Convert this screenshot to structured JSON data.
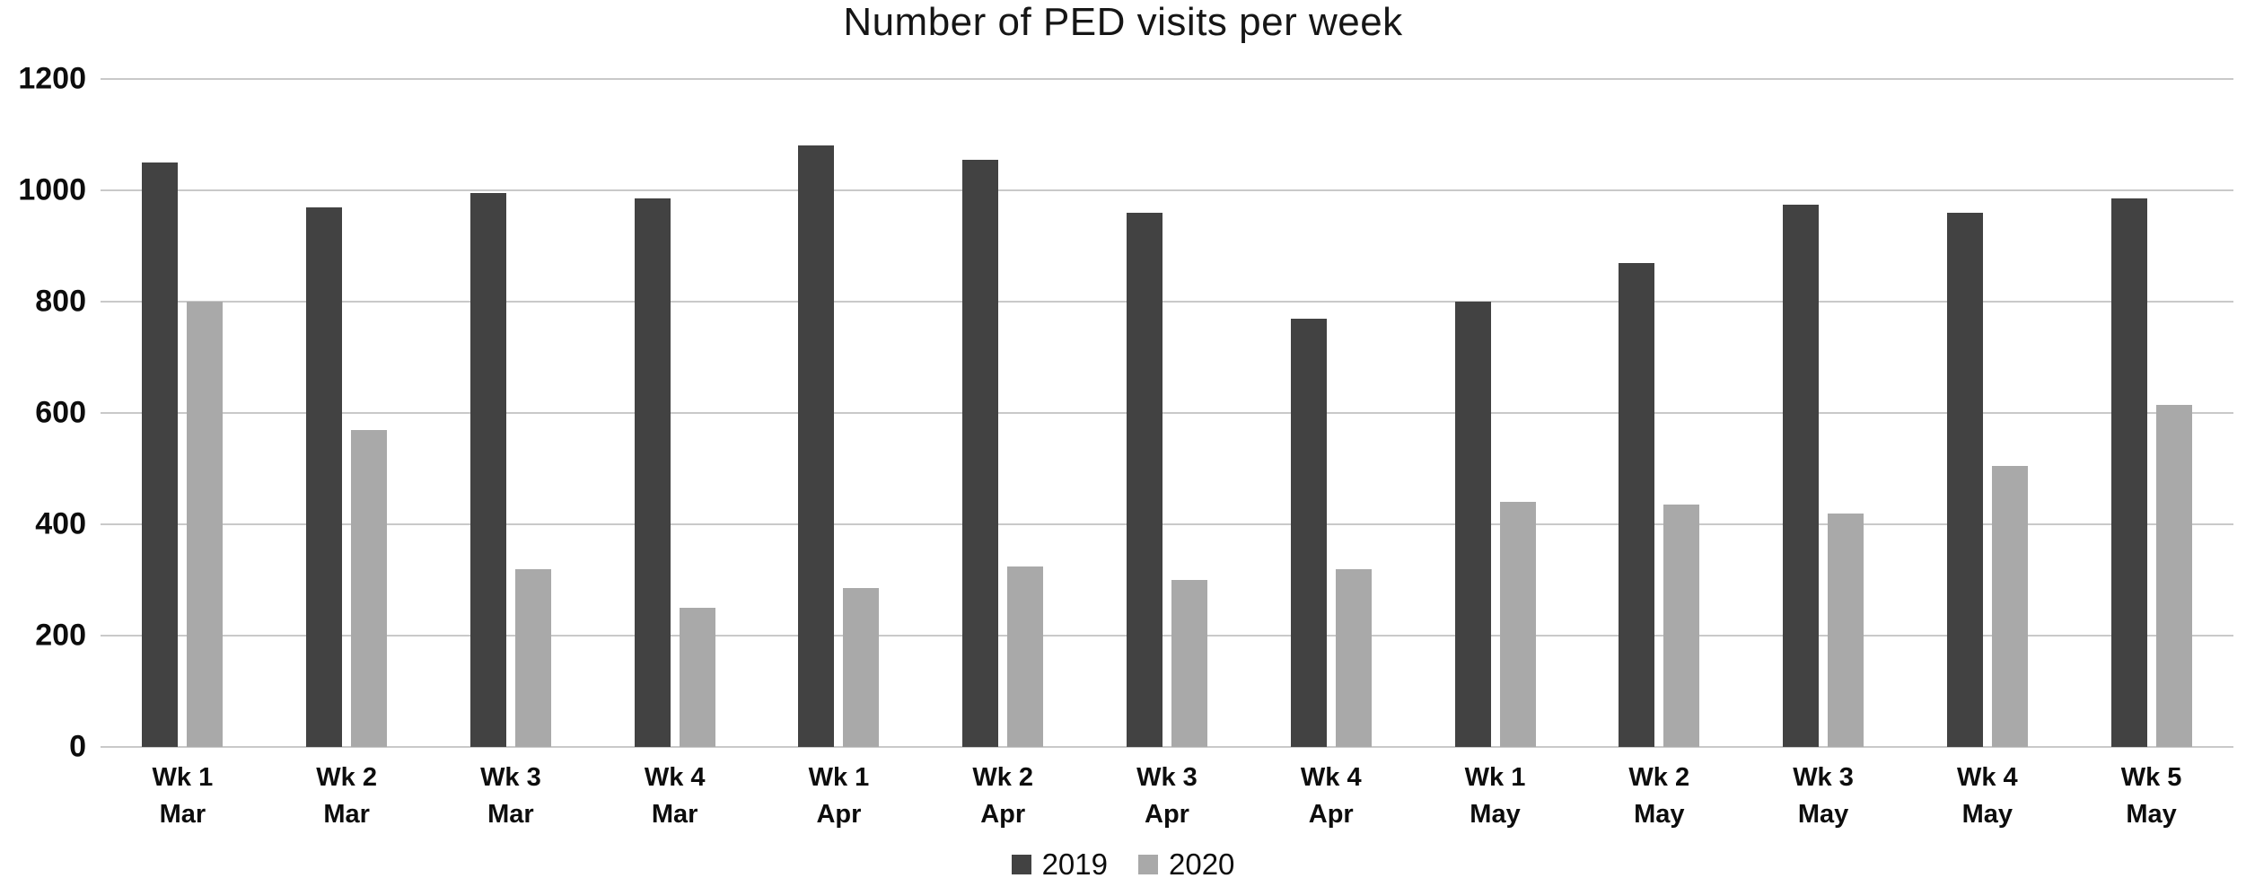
{
  "page": {
    "background": "#ffffff"
  },
  "chart_data": {
    "type": "bar",
    "title": "Number of PED visits per week",
    "categories": [
      "Wk 1 Mar",
      "Wk 2 Mar",
      "Wk 3 Mar",
      "Wk 4 Mar",
      "Wk 1 Apr",
      "Wk 2 Apr",
      "Wk 3 Apr",
      "Wk 4 Apr",
      "Wk 1 May",
      "Wk 2 May",
      "Wk 3 May",
      "Wk 4 May",
      "Wk 5 May"
    ],
    "series": [
      {
        "name": "2019",
        "color": "#424242",
        "values": [
          1050,
          970,
          995,
          985,
          1080,
          1055,
          960,
          770,
          800,
          870,
          975,
          960,
          985
        ]
      },
      {
        "name": "2020",
        "color": "#a9a9a9",
        "values": [
          800,
          570,
          320,
          250,
          285,
          325,
          300,
          320,
          440,
          435,
          420,
          505,
          615
        ]
      }
    ],
    "xlabel": "",
    "ylabel": "",
    "ylim": [
      0,
      1200
    ],
    "yticks": [
      0,
      200,
      400,
      600,
      800,
      1000,
      1200
    ],
    "grid": true,
    "gridline_color": "#c9c9c9",
    "legend_position": "bottom",
    "text_color": "#0d0d0d"
  }
}
